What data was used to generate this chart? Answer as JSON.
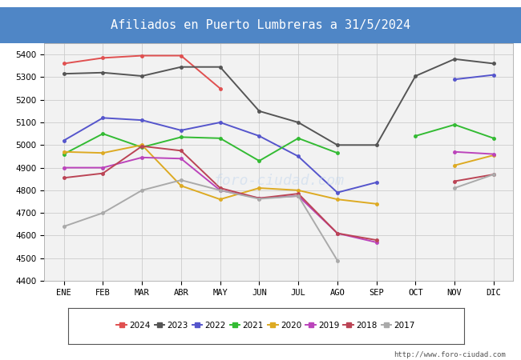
{
  "title": "Afiliados en Puerto Lumbreras a 31/5/2024",
  "title_bg_color": "#4f86c6",
  "title_text_color": "white",
  "ylim": [
    4400,
    5450
  ],
  "yticks": [
    4400,
    4500,
    4600,
    4700,
    4800,
    4900,
    5000,
    5100,
    5200,
    5300,
    5400
  ],
  "months": [
    "ENE",
    "FEB",
    "MAR",
    "ABR",
    "MAY",
    "JUN",
    "JUL",
    "AGO",
    "SEP",
    "OCT",
    "NOV",
    "DIC"
  ],
  "url": "http://www.foro-ciudad.com",
  "watermark": "foro-ciudad.com",
  "series": [
    {
      "label": "2024",
      "color": "#e05050",
      "data": [
        5360,
        5385,
        5395,
        5395,
        5250,
        null,
        null,
        null,
        null,
        null,
        null,
        null
      ]
    },
    {
      "label": "2023",
      "color": "#555555",
      "data": [
        5315,
        5320,
        5305,
        5345,
        5345,
        5150,
        5100,
        5000,
        5000,
        5305,
        5380,
        5360
      ]
    },
    {
      "label": "2022",
      "color": "#5555cc",
      "data": [
        5020,
        5120,
        5110,
        5065,
        5100,
        5040,
        4950,
        4790,
        4835,
        null,
        5290,
        5310
      ]
    },
    {
      "label": "2021",
      "color": "#33bb33",
      "data": [
        4960,
        5050,
        4990,
        5035,
        5030,
        4930,
        5030,
        4965,
        null,
        5040,
        5090,
        5030
      ]
    },
    {
      "label": "2020",
      "color": "#ddaa22",
      "data": [
        4970,
        4965,
        5000,
        4820,
        4760,
        4810,
        4800,
        4760,
        4740,
        null,
        4910,
        4955
      ]
    },
    {
      "label": "2019",
      "color": "#bb44bb",
      "data": [
        4900,
        4900,
        4945,
        4940,
        4800,
        4765,
        4775,
        4610,
        4570,
        null,
        4970,
        4960
      ]
    },
    {
      "label": "2018",
      "color": "#bb4455",
      "data": [
        4855,
        4875,
        4995,
        4975,
        4810,
        4765,
        4785,
        4610,
        4580,
        null,
        4840,
        4870
      ]
    },
    {
      "label": "2017",
      "color": "#aaaaaa",
      "data": [
        4640,
        4700,
        4800,
        4845,
        4800,
        4762,
        4775,
        4490,
        null,
        null,
        4810,
        4870
      ]
    }
  ],
  "grid_color": "#cccccc",
  "plot_bg_color": "#f2f2f2",
  "fig_width": 6.5,
  "fig_height": 4.5,
  "dpi": 100
}
